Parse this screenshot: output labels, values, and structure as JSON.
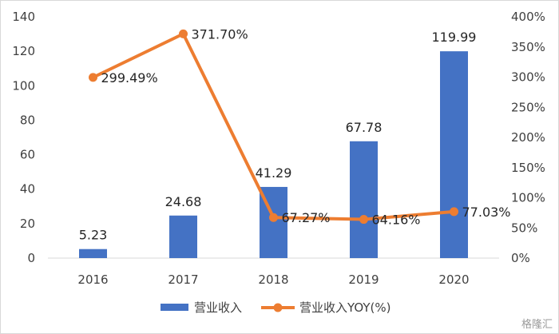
{
  "chart_data": {
    "type": "bar",
    "categories": [
      "2016",
      "2017",
      "2018",
      "2019",
      "2020"
    ],
    "series": [
      {
        "name": "营业收入",
        "type": "bar",
        "axis": "left",
        "values": [
          5.23,
          24.68,
          41.29,
          67.78,
          119.99
        ],
        "labels": [
          "5.23",
          "24.68",
          "41.29",
          "67.78",
          "119.99"
        ],
        "color": "#4472c4"
      },
      {
        "name": "营业收入YOY(%)",
        "type": "line",
        "axis": "right",
        "values": [
          299.49,
          371.7,
          67.27,
          64.16,
          77.03
        ],
        "labels": [
          "299.49%",
          "371.70%",
          "67.27%",
          "64.16%",
          "77.03%"
        ],
        "color": "#ed7d31"
      }
    ],
    "y_left": {
      "ylim": [
        0,
        140
      ],
      "ticks": [
        "0",
        "20",
        "40",
        "60",
        "80",
        "100",
        "120",
        "140"
      ]
    },
    "y_right": {
      "ylim": [
        0,
        400
      ],
      "ticks": [
        "0%",
        "50%",
        "100%",
        "150%",
        "200%",
        "250%",
        "300%",
        "350%",
        "400%"
      ]
    },
    "grid": false,
    "legend": "bottom"
  },
  "watermark": "格隆汇"
}
